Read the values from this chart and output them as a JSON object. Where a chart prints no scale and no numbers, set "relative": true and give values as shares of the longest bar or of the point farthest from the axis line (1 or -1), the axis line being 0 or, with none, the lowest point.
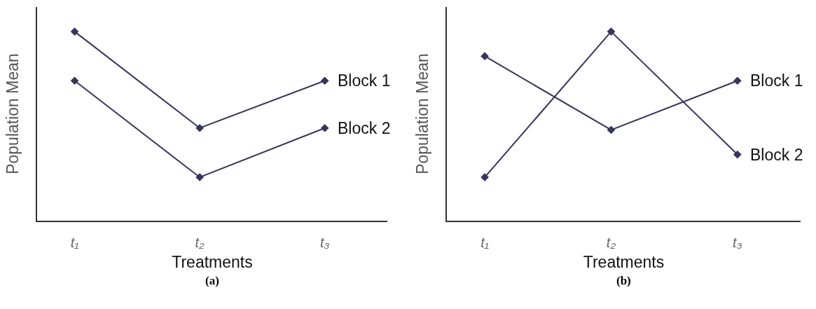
{
  "chart_data": [
    {
      "type": "line",
      "title": "(a)",
      "xlabel": "Treatments",
      "ylabel": "Population Mean",
      "categories": [
        "t₁",
        "t₂",
        "t₃"
      ],
      "relative": true,
      "tick_labels": "x",
      "marker": "diamond",
      "series": [
        {
          "name": "Block 1",
          "color": "#35355e",
          "values": [
            1,
            0.49,
            0.74
          ]
        },
        {
          "name": "Block 2",
          "color": "#35355e",
          "values": [
            0.74,
            0.23,
            0.49
          ]
        }
      ]
    },
    {
      "type": "line",
      "title": "(b)",
      "xlabel": "Treatments",
      "ylabel": "Population Mean",
      "categories": [
        "t₁",
        "t₂",
        "t₃"
      ],
      "relative": true,
      "tick_labels": "x",
      "marker": "diamond",
      "series": [
        {
          "name": "Block 1",
          "color": "#35355e",
          "values": [
            0.87,
            0.48,
            0.74
          ]
        },
        {
          "name": "Block 2",
          "color": "#35355e",
          "values": [
            0.23,
            1,
            0.35
          ]
        }
      ]
    }
  ]
}
